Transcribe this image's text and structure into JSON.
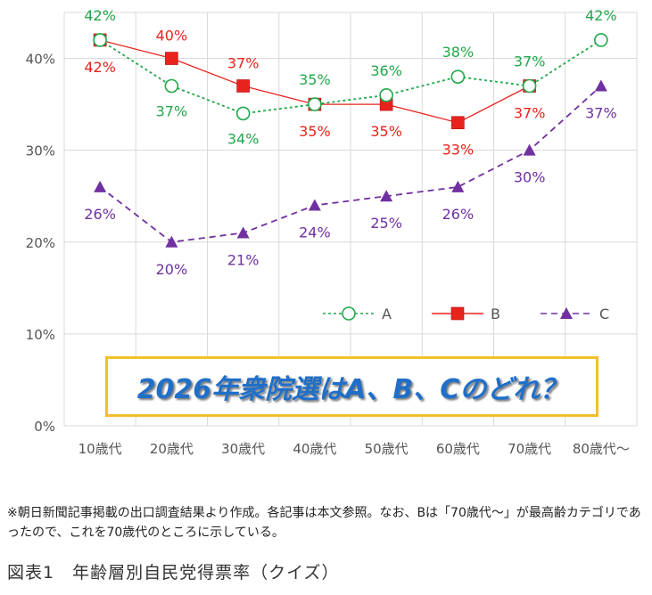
{
  "chart_data": {
    "type": "line",
    "categories": [
      "10歳代",
      "20歳代",
      "30歳代",
      "40歳代",
      "50歳代",
      "60歳代",
      "70歳代",
      "80歳代〜"
    ],
    "ylim": [
      0,
      45
    ],
    "yticks": [
      0,
      10,
      20,
      30,
      40
    ],
    "ytick_labels": [
      "0%",
      "10%",
      "20%",
      "30%",
      "40%"
    ],
    "grid": true,
    "legend_position": "bottom-right",
    "series": [
      {
        "name": "A",
        "values": [
          42,
          37,
          34,
          35,
          36,
          38,
          37,
          42
        ],
        "labels": [
          "42%",
          "37%",
          "34%",
          "35%",
          "36%",
          "38%",
          "37%",
          "42%"
        ],
        "color": "#22a84a",
        "dash": "dotted",
        "marker": "circle"
      },
      {
        "name": "B",
        "values": [
          42,
          40,
          37,
          35,
          35,
          33,
          37,
          null
        ],
        "labels": [
          "42%",
          "40%",
          "37%",
          "35%",
          "35%",
          "33%",
          "37%",
          ""
        ],
        "color": "#e8231d",
        "dash": "solid",
        "marker": "square"
      },
      {
        "name": "C",
        "values": [
          26,
          20,
          21,
          24,
          25,
          26,
          30,
          37
        ],
        "labels": [
          "26%",
          "20%",
          "21%",
          "24%",
          "25%",
          "26%",
          "30%",
          "37%"
        ],
        "color": "#7030a0",
        "dash": "dashed",
        "marker": "triangle"
      }
    ]
  },
  "quiz_text": "2026年衆院選はA、B、Cのどれ？",
  "note": "※朝日新聞記事掲載の出口調査結果より作成。各記事は本文参照。なお、Bは「70歳代〜」が最高齢カテゴリであったので、これを70歳代のところに示している。",
  "caption": "図表1　年齢層別自民党得票率（クイズ）",
  "colors": {
    "box_border": "#f2c02a",
    "quiz_text": "#1f6fc9",
    "grid": "#d9d9d9"
  }
}
